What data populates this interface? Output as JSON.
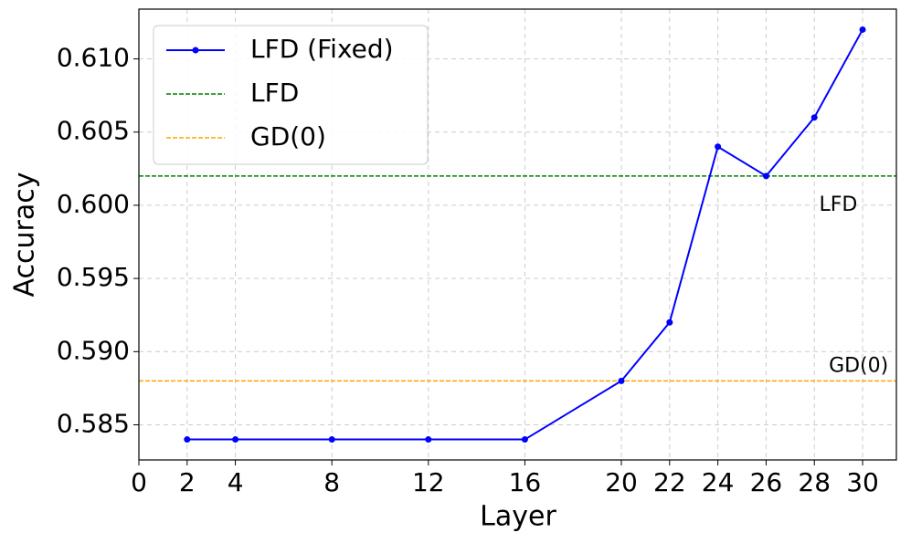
{
  "chart_data": {
    "type": "line",
    "x_label": "Layer",
    "y_label": "Accuracy",
    "x": [
      2,
      4,
      8,
      12,
      16,
      20,
      22,
      24,
      26,
      28,
      30
    ],
    "series": [
      {
        "name": "LFD (Fixed)",
        "color": "#0000ff",
        "values": [
          0.584,
          0.584,
          0.584,
          0.584,
          0.584,
          0.588,
          0.592,
          0.604,
          0.602,
          0.606,
          0.612
        ]
      }
    ],
    "reference_lines": [
      {
        "name": "LFD",
        "color": "#008000",
        "value": 0.602
      },
      {
        "name": "GD(0)",
        "color": "#ffa500",
        "value": 0.588
      }
    ],
    "annotations": [
      {
        "text": "LFD",
        "x": 28.2,
        "y": 0.6,
        "color": "#008000"
      },
      {
        "text": "GD(0)",
        "x": 28.6,
        "y": 0.589,
        "color": "#ffa500"
      }
    ],
    "xlim": [
      0,
      31.4
    ],
    "ylim": [
      0.5826,
      0.6134
    ],
    "xticks": [
      0,
      2,
      4,
      8,
      12,
      16,
      20,
      22,
      24,
      26,
      28,
      30
    ],
    "yticks": [
      0.585,
      {
        "value": 0.59,
        "label": "0.590"
      },
      0.595,
      {
        "value": 0.6,
        "label": "0.600"
      },
      0.605,
      {
        "value": 0.61,
        "label": "0.610"
      }
    ],
    "grid": true,
    "legend": "upper left"
  }
}
